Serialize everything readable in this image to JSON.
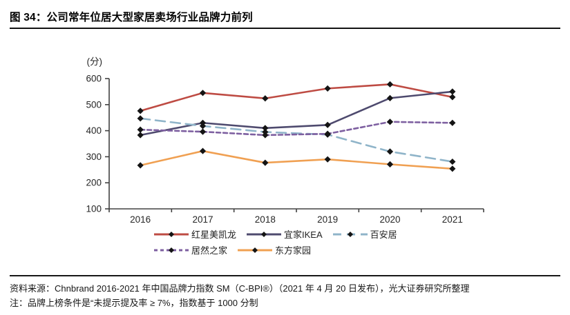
{
  "page": {
    "title": "图 34：公司常年位居大型家居卖场行业品牌力前列",
    "source_line": "资料来源：Chnbrand 2016-2021 年中国品牌力指数 SM（C-BPI®）（2021 年 4 月 20 日发布），光大证券研究所整理",
    "note_line": "注：品牌上榜条件是“未提示提及率 ≥ 7%，指数基于 1000 分制"
  },
  "chart_data": {
    "type": "line",
    "title": "图 34：公司常年位居大型家居卖场行业品牌力前列",
    "xlabel": "",
    "ylabel": "(分)",
    "x": [
      "2016",
      "2017",
      "2018",
      "2019",
      "2020",
      "2021"
    ],
    "ylim": [
      100,
      600
    ],
    "yticks": [
      100,
      200,
      300,
      400,
      500,
      600
    ],
    "grid": false,
    "legend_position": "bottom",
    "marker": {
      "shape": "diamond",
      "color": "#141414"
    },
    "axis_color": "#404040",
    "tick_label_color": "#262626",
    "series": [
      {
        "name": "红星美凯龙",
        "color": "#BE4B43",
        "dash": "solid",
        "values": [
          476,
          545,
          524,
          562,
          578,
          529
        ]
      },
      {
        "name": "宜家IKEA",
        "color": "#4E4A6E",
        "dash": "solid",
        "values": [
          383,
          430,
          410,
          422,
          525,
          550
        ]
      },
      {
        "name": "百安居",
        "color": "#8FB4C9",
        "dash": "long-dash",
        "values": [
          447,
          418,
          395,
          385,
          320,
          281
        ]
      },
      {
        "name": "居然之家",
        "color": "#7D5FA0",
        "dash": "dash",
        "values": [
          404,
          396,
          383,
          388,
          434,
          430
        ]
      },
      {
        "name": "东方家园",
        "color": "#F0A052",
        "dash": "solid",
        "values": [
          267,
          322,
          277,
          290,
          271,
          254
        ]
      }
    ],
    "legend_rows": [
      [
        0,
        1,
        2
      ],
      [
        3,
        4
      ]
    ]
  }
}
